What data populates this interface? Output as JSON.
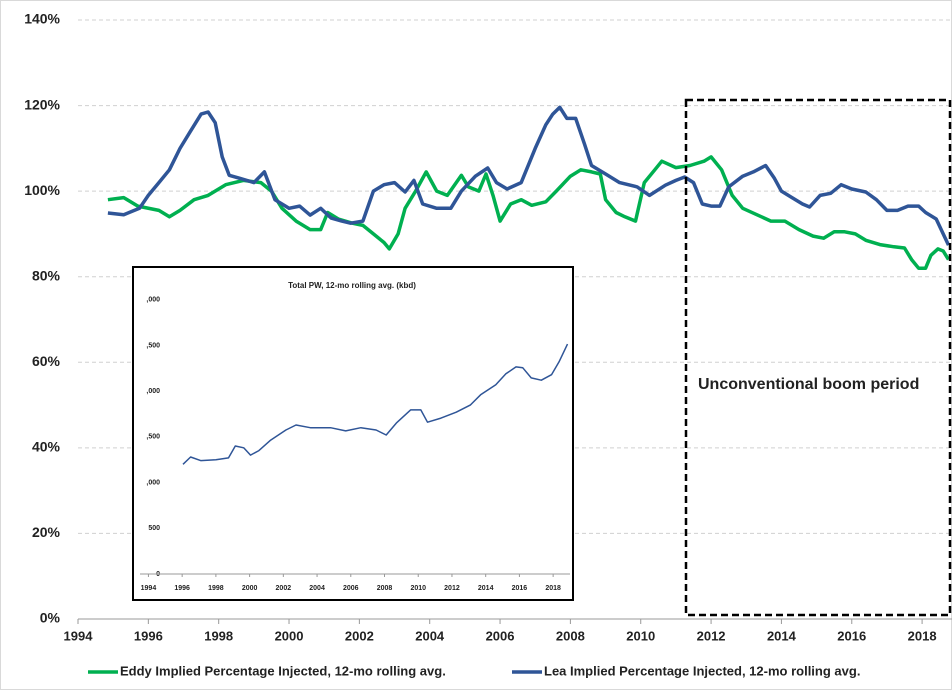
{
  "chart_data": [
    {
      "type": "line",
      "xlim": [
        1994,
        2018.85
      ],
      "xticks": [
        1994,
        1996,
        1998,
        2000,
        2002,
        2004,
        2006,
        2008,
        2010,
        2012,
        2014,
        2016,
        2018
      ],
      "ylim": [
        0,
        140
      ],
      "yticks": [
        {
          "value": 0,
          "label": "0%"
        },
        {
          "value": 20,
          "label": "20%"
        },
        {
          "value": 40,
          "label": "40%"
        },
        {
          "value": 60,
          "label": "60%"
        },
        {
          "value": 80,
          "label": "80%"
        },
        {
          "value": 100,
          "label": "100%"
        },
        {
          "value": 120,
          "label": "120%"
        },
        {
          "value": 140,
          "label": "140%"
        }
      ],
      "grid": true,
      "legend": "bottom",
      "annotation": "Unconventional boom period",
      "series": [
        {
          "name": "Eddy Implied Percentage Injected, 12-mo rolling avg.",
          "color": "#00b050",
          "x": [
            1994.85,
            1995.3,
            1995.7,
            1996.3,
            1996.6,
            1996.9,
            1997.3,
            1997.7,
            1998.2,
            1998.7,
            1999.2,
            1999.5,
            1999.8,
            2000.2,
            2000.6,
            2000.9,
            2001.1,
            2001.4,
            2001.8,
            2002.1,
            2002.4,
            2002.7,
            2002.85,
            2003.1,
            2003.3,
            2003.6,
            2003.9,
            2004.2,
            2004.5,
            2004.9,
            2005.1,
            2005.4,
            2005.6,
            2005.8,
            2006.0,
            2006.3,
            2006.6,
            2006.9,
            2007.3,
            2007.6,
            2008.0,
            2008.3,
            2008.6,
            2008.85,
            2009.0,
            2009.3,
            2009.55,
            2009.85,
            2010.1,
            2010.4,
            2010.6,
            2011.0,
            2011.4,
            2011.8,
            2012.0,
            2012.3,
            2012.6,
            2012.9,
            2013.3,
            2013.7,
            2014.1,
            2014.5,
            2014.9,
            2015.2,
            2015.5,
            2015.8,
            2016.1,
            2016.4,
            2016.8,
            2017.2,
            2017.5,
            2017.7,
            2017.9,
            2018.1,
            2018.25,
            2018.45,
            2018.6,
            2018.75
          ],
          "values": [
            98,
            98.5,
            96.5,
            95.5,
            94,
            95.5,
            98,
            99,
            101.5,
            102.5,
            102,
            100,
            96,
            93,
            91,
            91,
            95,
            93.5,
            92.5,
            92,
            90,
            88,
            86.5,
            90,
            96,
            100,
            104.5,
            100,
            99,
            103.7,
            101,
            100,
            104,
            99,
            93,
            97,
            98,
            96.7,
            97.5,
            100,
            103.5,
            105,
            104.5,
            104,
            98,
            95,
            94,
            93,
            102,
            105,
            107,
            105.5,
            106,
            107,
            108,
            105,
            99,
            96,
            94.5,
            93,
            93,
            91,
            89.5,
            89,
            90.5,
            90.5,
            90,
            88.5,
            87.5,
            87,
            86.7,
            84,
            82,
            82,
            85,
            86.5,
            86,
            84
          ]
        },
        {
          "name": "Lea Implied Percentage Injected, 12-mo rolling avg.",
          "color": "#2f5597",
          "x": [
            1994.85,
            1995.3,
            1995.75,
            1996.0,
            1996.3,
            1996.6,
            1996.9,
            1997.2,
            1997.5,
            1997.7,
            1997.9,
            1998.1,
            1998.3,
            1998.6,
            1999.0,
            1999.3,
            1999.6,
            2000.0,
            2000.3,
            2000.6,
            2000.9,
            2001.2,
            2001.5,
            2001.75,
            2002.1,
            2002.4,
            2002.7,
            2003.0,
            2003.3,
            2003.55,
            2003.8,
            2004.2,
            2004.6,
            2004.9,
            2005.3,
            2005.65,
            2005.9,
            2006.2,
            2006.6,
            2007.0,
            2007.3,
            2007.5,
            2007.7,
            2007.9,
            2008.15,
            2008.4,
            2008.6,
            2009.0,
            2009.4,
            2009.9,
            2010.25,
            2010.7,
            2011.0,
            2011.25,
            2011.5,
            2011.75,
            2012.0,
            2012.25,
            2012.5,
            2012.9,
            2013.2,
            2013.55,
            2013.8,
            2014.0,
            2014.3,
            2014.6,
            2014.8,
            2015.1,
            2015.4,
            2015.7,
            2016.0,
            2016.4,
            2016.7,
            2017.0,
            2017.3,
            2017.6,
            2017.9,
            2018.1,
            2018.4,
            2018.6,
            2018.75
          ],
          "values": [
            94.9,
            94.5,
            96,
            99,
            102,
            105,
            110,
            114,
            118,
            118.5,
            116,
            108,
            103.7,
            103,
            102,
            104.5,
            98,
            96,
            96.5,
            94.4,
            96,
            93.7,
            93,
            92.5,
            93,
            100,
            101.5,
            102,
            99.8,
            102.5,
            97,
            96,
            96,
            100,
            103.5,
            105.4,
            102,
            100.5,
            102,
            110,
            115.5,
            118,
            119.6,
            117,
            117,
            111,
            106,
            104,
            102,
            101,
            99,
            101.4,
            102.5,
            103.3,
            102,
            97,
            96.5,
            96.5,
            101,
            103.5,
            104.5,
            106,
            103,
            100,
            98.5,
            97,
            96.3,
            99,
            99.5,
            101.5,
            100.5,
            99.8,
            98,
            95.5,
            95.5,
            96.5,
            96.5,
            95,
            93.5,
            90,
            87.4
          ]
        }
      ]
    },
    {
      "type": "line",
      "title": "Total PW, 12-mo rolling avg. (kbd)",
      "xlim": [
        1993.5,
        2019
      ],
      "xticks": [
        1994,
        1996,
        1998,
        2000,
        2002,
        2004,
        2006,
        2008,
        2010,
        2012,
        2014,
        2016,
        2018
      ],
      "ylim": [
        0,
        3150
      ],
      "yticks": [
        0,
        500,
        {
          "value": 1000,
          "label": ",000"
        },
        {
          "value": 1500,
          "label": ",500"
        },
        {
          "value": 2000,
          "label": ",000"
        },
        {
          "value": 2500,
          "label": ",500"
        },
        {
          "value": 3000,
          "label": ",000"
        }
      ],
      "grid": false,
      "series": [
        {
          "color": "#2f5597",
          "x": [
            1996.05,
            1996.5,
            1997.1,
            1998.0,
            1998.75,
            1999.15,
            1999.65,
            2000.05,
            2000.55,
            2001.25,
            2002.15,
            2002.75,
            2003.6,
            2004.8,
            2005.7,
            2006.6,
            2007.5,
            2008.1,
            2008.7,
            2009.55,
            2010.15,
            2010.55,
            2011.35,
            2012.25,
            2013.1,
            2013.7,
            2014.6,
            2015.2,
            2015.8,
            2016.2,
            2016.7,
            2017.3,
            2017.9,
            2018.35,
            2018.85
          ],
          "values": [
            1200,
            1280,
            1240,
            1250,
            1270,
            1400,
            1380,
            1300,
            1350,
            1465,
            1575,
            1630,
            1600,
            1600,
            1565,
            1600,
            1575,
            1520,
            1650,
            1795,
            1795,
            1660,
            1705,
            1770,
            1850,
            1960,
            2070,
            2190,
            2265,
            2255,
            2145,
            2120,
            2180,
            2320,
            2515
          ]
        }
      ]
    }
  ]
}
